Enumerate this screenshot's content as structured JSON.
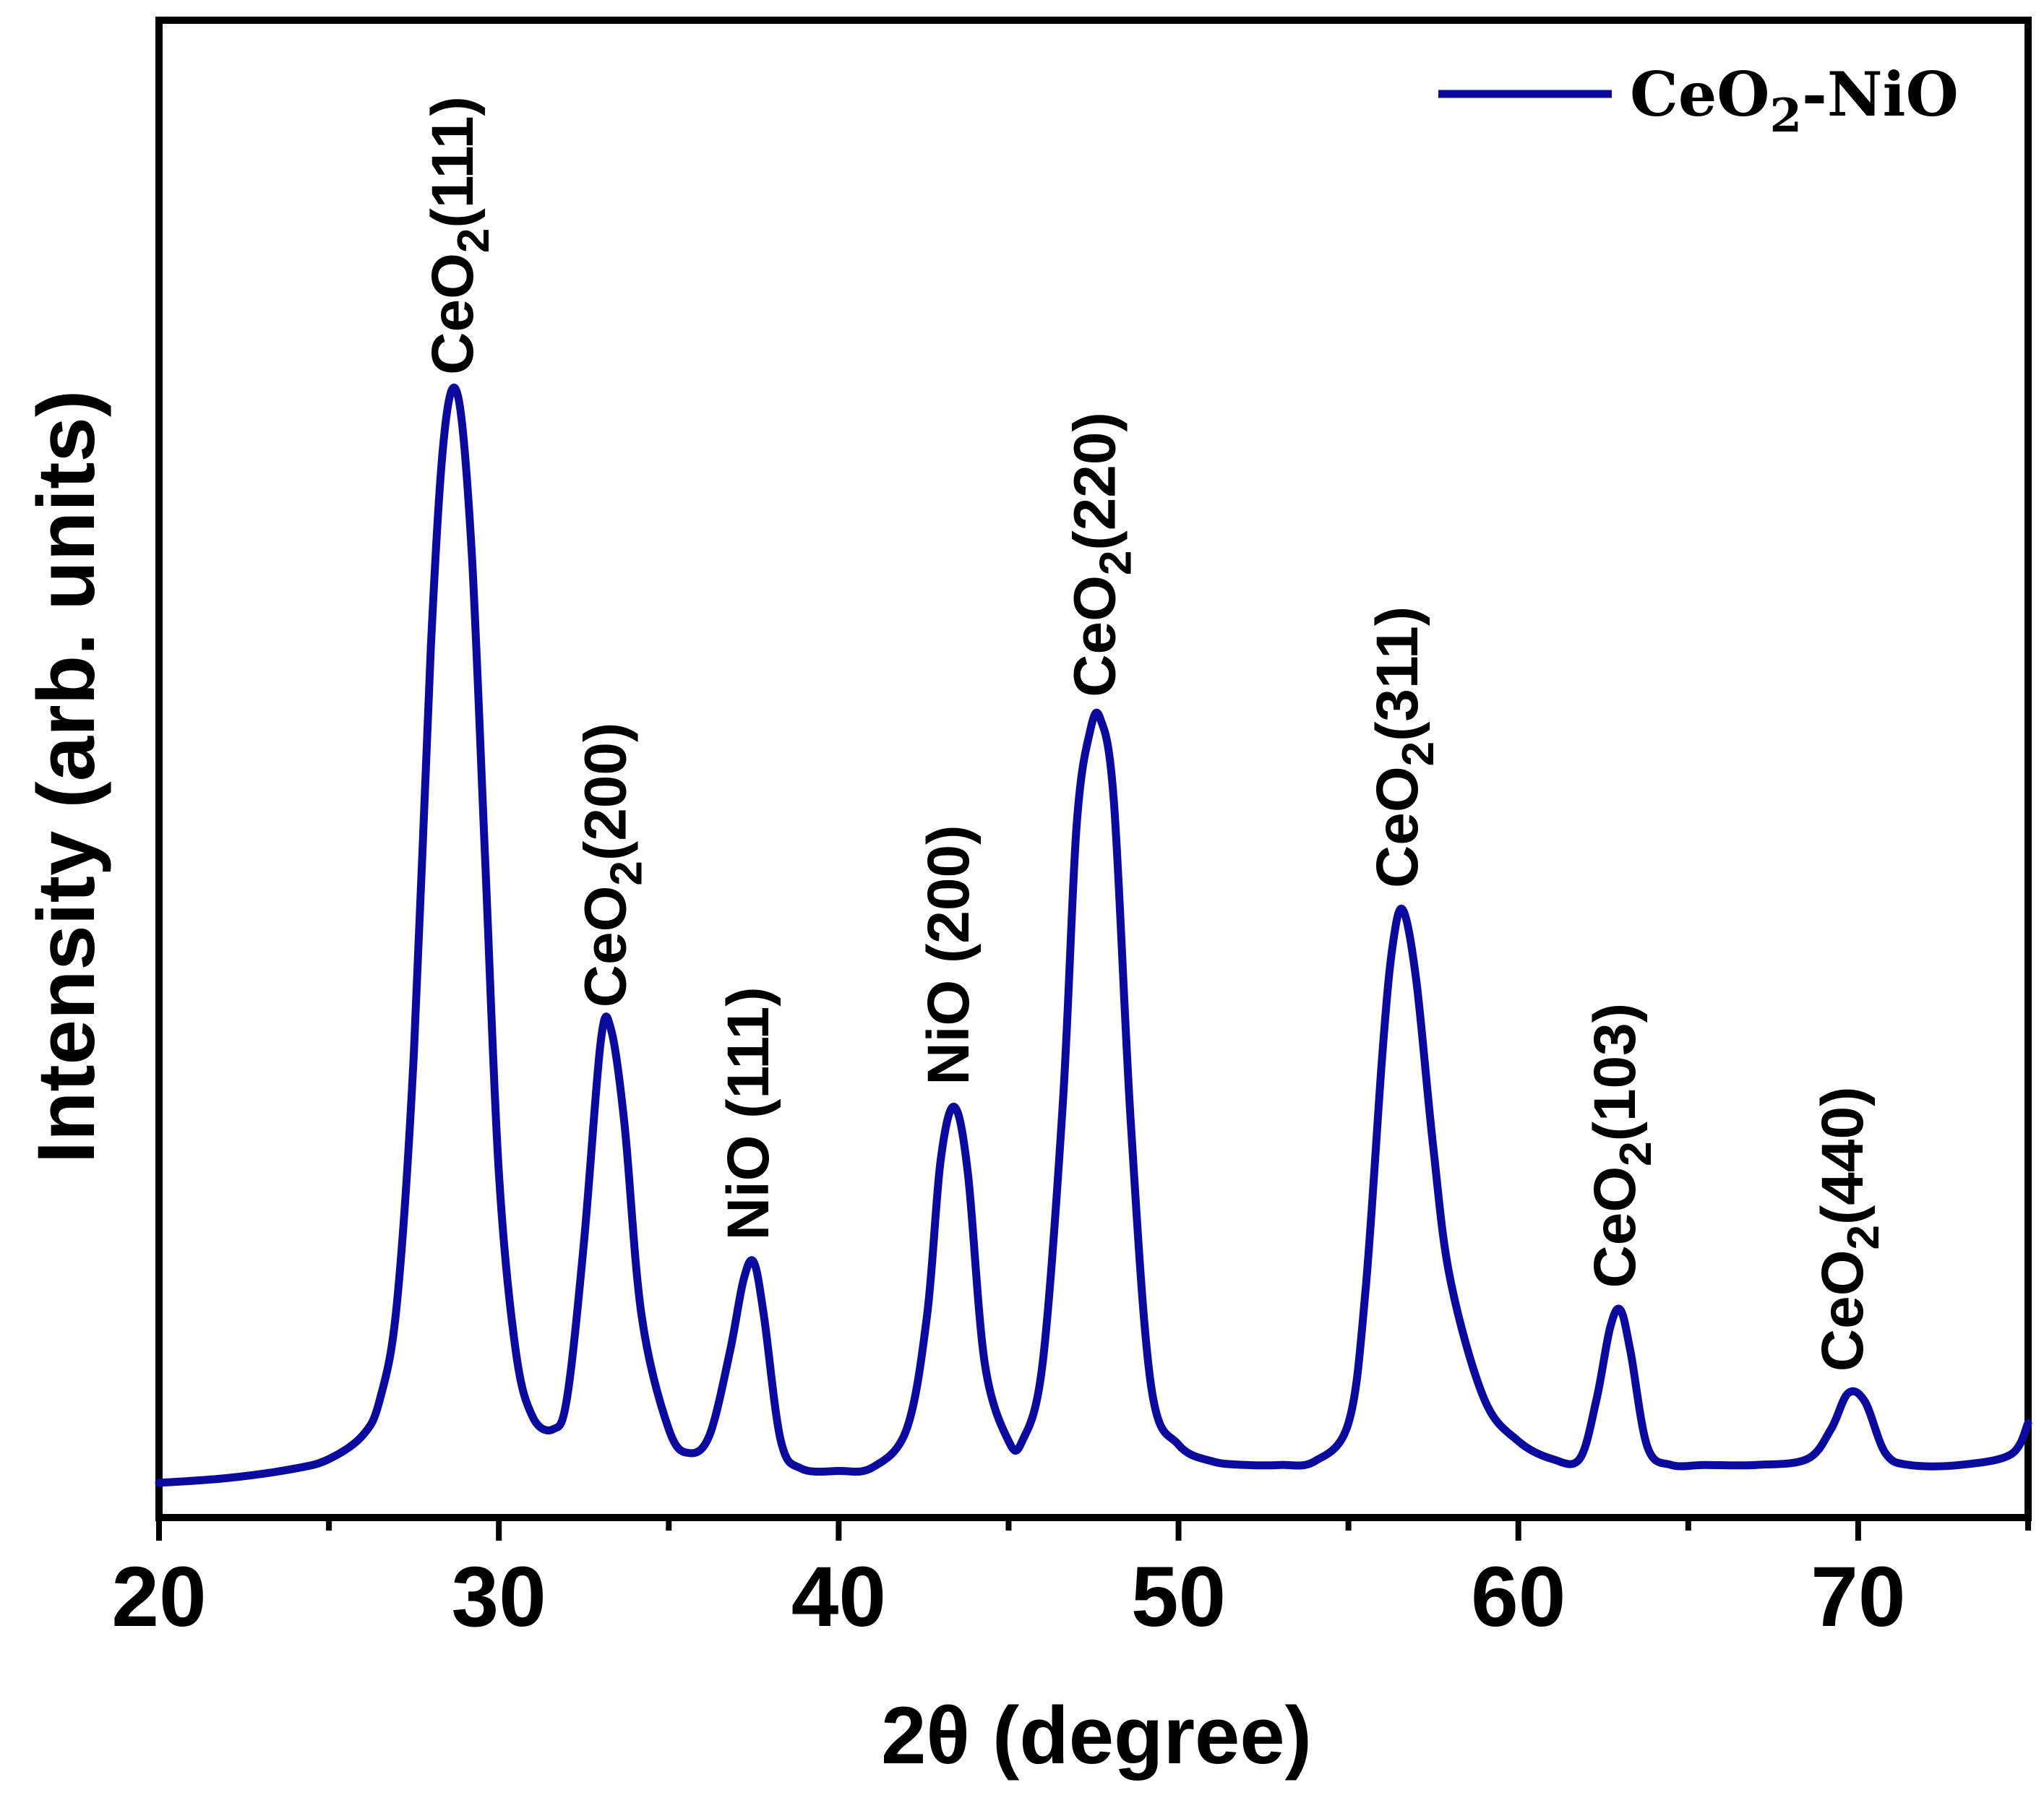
{
  "chart_data": {
    "type": "line",
    "title": "",
    "xlabel": "2θ (degree)",
    "ylabel": "Intensity (arb. units)",
    "xlim": [
      20,
      75
    ],
    "ylim": [
      0,
      100
    ],
    "xticks": [
      20,
      30,
      40,
      50,
      60,
      70
    ],
    "yticks": [],
    "grid": false,
    "legend": {
      "position": "top-right",
      "entries": [
        {
          "label_main": "CeO",
          "label_sub": "2",
          "label_tail": "-NiO",
          "color": "#0a0a9e"
        }
      ]
    },
    "series": [
      {
        "name": "CeO2-NiO",
        "color": "#0a0a9e",
        "x": [
          20,
          22,
          24,
          25,
          26,
          26.5,
          27,
          27.5,
          28,
          28.4,
          28.8,
          29.2,
          29.6,
          30,
          30.5,
          31,
          31.6,
          32,
          32.5,
          33,
          33.3,
          33.7,
          34.2,
          35,
          35.6,
          36.2,
          36.8,
          37.2,
          37.5,
          37.8,
          38.3,
          38.9,
          40,
          41,
          42,
          42.6,
          43,
          43.4,
          43.8,
          44.3,
          45,
          45.4,
          46,
          46.6,
          47,
          47.4,
          47.7,
          48.1,
          48.6,
          49.2,
          50,
          51,
          52,
          53,
          54,
          55,
          55.5,
          56,
          56.3,
          56.6,
          57,
          57.5,
          58,
          59,
          60,
          61,
          61.8,
          62.3,
          62.7,
          63,
          63.3,
          63.8,
          64.5,
          65.5,
          67,
          68.5,
          69.2,
          69.7,
          70.2,
          70.8,
          71.5,
          73,
          74.5,
          75
        ],
        "y": [
          0,
          0.4,
          1.2,
          2,
          4,
          7,
          15,
          36,
          70,
          88,
          91,
          78,
          52,
          26,
          11,
          5.5,
          4.5,
          7,
          20,
          37,
          38,
          30,
          14,
          4.5,
          2.5,
          4,
          11,
          17,
          18.5,
          14,
          3.5,
          1.2,
          1,
          1.3,
          4.5,
          14,
          27,
          31.5,
          26,
          10,
          3.5,
          3.5,
          10,
          32,
          55,
          63,
          64,
          57,
          30,
          8,
          3.2,
          1.8,
          1.5,
          1.5,
          1.8,
          5,
          16,
          36,
          45,
          48,
          42,
          28,
          17,
          7,
          3.5,
          2,
          2,
          7,
          13,
          14.5,
          11,
          3,
          1.5,
          1.5,
          1.5,
          2,
          4.5,
          7.5,
          6.8,
          2.5,
          1.5,
          1.5,
          2.4,
          5
        ]
      }
    ],
    "annotations": [
      {
        "x": 28.8,
        "y": 91,
        "main": "CeO",
        "sub": "2",
        "tail": "(111)"
      },
      {
        "x": 33.3,
        "y": 38,
        "main": "CeO",
        "sub": "2",
        "tail": "(200)"
      },
      {
        "x": 37.5,
        "y": 18.5,
        "main": "NiO (111)",
        "sub": "",
        "tail": ""
      },
      {
        "x": 43.4,
        "y": 31.5,
        "main": "NiO (200)",
        "sub": "",
        "tail": ""
      },
      {
        "x": 47.7,
        "y": 64,
        "main": "CeO",
        "sub": "2",
        "tail": "(220)"
      },
      {
        "x": 56.6,
        "y": 48,
        "main": "CeO",
        "sub": "2",
        "tail": "(311)"
      },
      {
        "x": 63.0,
        "y": 14.5,
        "main": "CeO",
        "sub": "2",
        "tail": "(103)"
      },
      {
        "x": 69.7,
        "y": 7.5,
        "main": "CeO",
        "sub": "2",
        "tail": "(440)"
      }
    ]
  }
}
